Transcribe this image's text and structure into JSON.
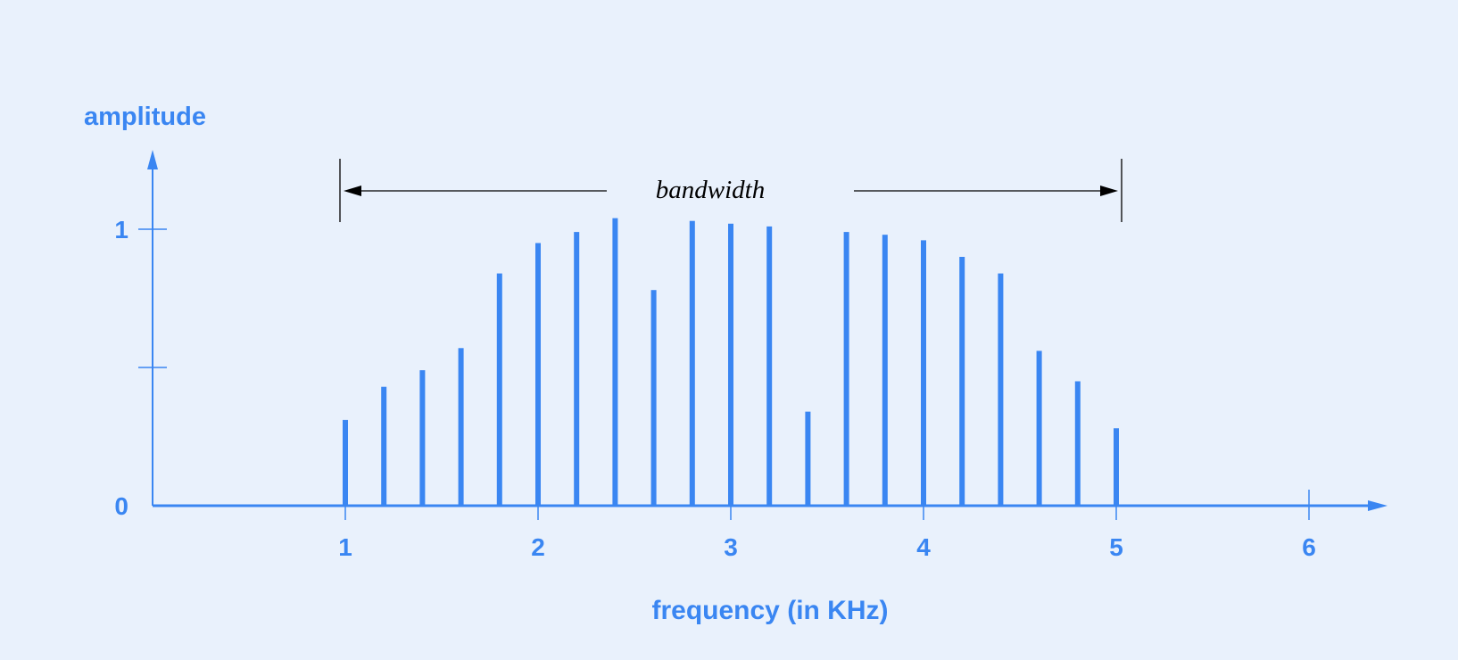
{
  "chart_data": {
    "type": "bar",
    "title": "",
    "xlabel": "frequency (in KHz)",
    "ylabel": "amplitude",
    "x": [
      1.0,
      1.2,
      1.4,
      1.6,
      1.8,
      2.0,
      2.2,
      2.4,
      2.6,
      2.8,
      3.0,
      3.2,
      3.4,
      3.6,
      3.8,
      4.0,
      4.2,
      4.4,
      4.6,
      4.8,
      5.0
    ],
    "values": [
      0.31,
      0.43,
      0.49,
      0.57,
      0.84,
      0.95,
      0.99,
      1.04,
      0.78,
      1.03,
      1.02,
      1.01,
      0.34,
      0.99,
      0.98,
      0.96,
      0.9,
      0.84,
      0.56,
      0.45,
      0.28
    ],
    "xticks": [
      "1",
      "2",
      "3",
      "4",
      "5",
      "6"
    ],
    "xtick_values": [
      1,
      2,
      3,
      4,
      5,
      6
    ],
    "yticks": [
      "0",
      "1"
    ],
    "ytick_values": [
      0,
      1
    ],
    "yminor_ticks": [
      0.5
    ],
    "xlim": [
      0,
      6.4
    ],
    "ylim": [
      0,
      1.3
    ],
    "grid": false,
    "legend": "none",
    "annotation": {
      "label": "bandwidth",
      "from": 1,
      "to": 5
    },
    "colors": {
      "bars": "#3a86f2",
      "axes": "#3a86f2",
      "text": "#3a86f2",
      "annotation": "#000000",
      "background": "#e9f1fc"
    }
  }
}
